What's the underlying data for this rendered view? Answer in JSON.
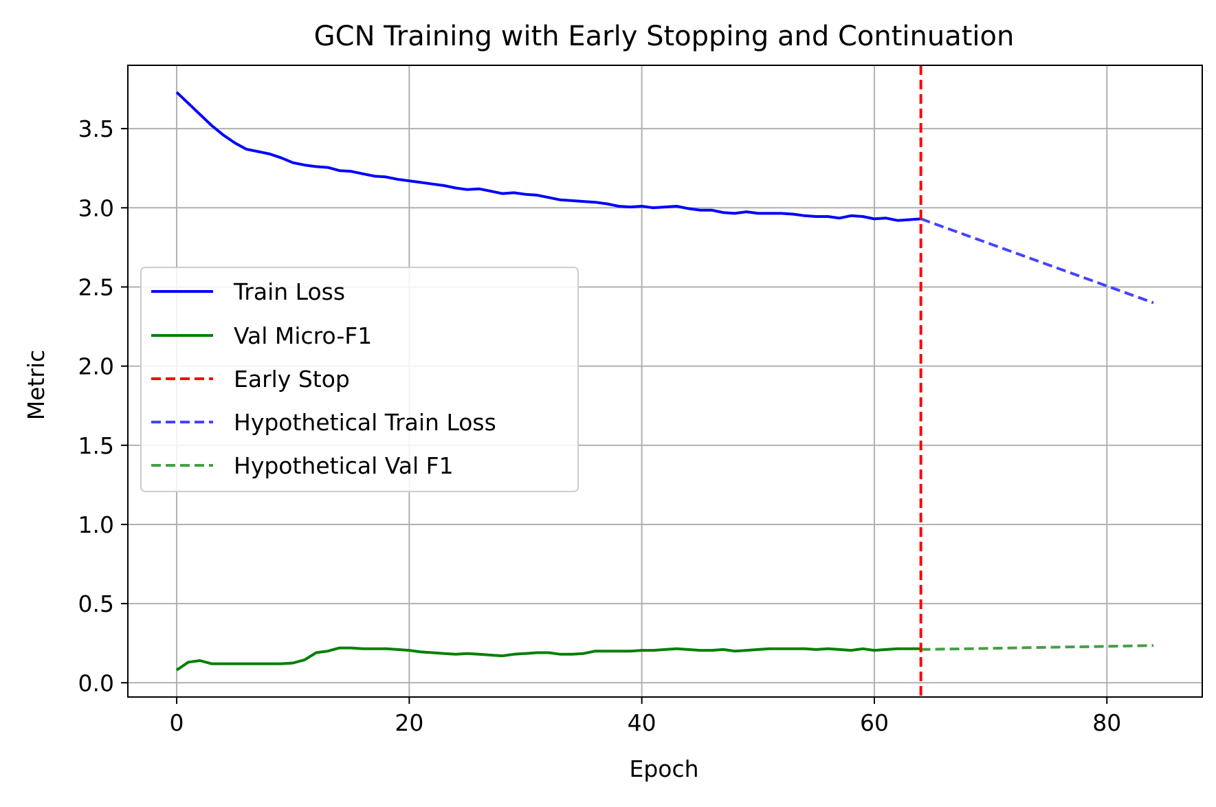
{
  "chart_data": {
    "type": "line",
    "title": "GCN Training with Early Stopping and Continuation",
    "xlabel": "Epoch",
    "ylabel": "Metric",
    "xlim": [
      -4.2,
      88.2
    ],
    "ylim": [
      -0.09,
      3.9
    ],
    "x_ticks": [
      0,
      20,
      40,
      60,
      80
    ],
    "x_tick_labels": [
      "0",
      "20",
      "40",
      "60",
      "80"
    ],
    "y_ticks": [
      0.0,
      0.5,
      1.0,
      1.5,
      2.0,
      2.5,
      3.0,
      3.5
    ],
    "y_tick_labels": [
      "0.0",
      "0.5",
      "1.0",
      "1.5",
      "2.0",
      "2.5",
      "3.0",
      "3.5"
    ],
    "grid": true,
    "legend_position": "center-left",
    "series": [
      {
        "name": "Train Loss",
        "color": "#0000ff",
        "style": "solid",
        "x": [
          0,
          1,
          2,
          3,
          4,
          5,
          6,
          7,
          8,
          9,
          10,
          11,
          12,
          13,
          14,
          15,
          16,
          17,
          18,
          19,
          20,
          21,
          22,
          23,
          24,
          25,
          26,
          27,
          28,
          29,
          30,
          31,
          32,
          33,
          34,
          35,
          36,
          37,
          38,
          39,
          40,
          41,
          42,
          43,
          44,
          45,
          46,
          47,
          48,
          49,
          50,
          51,
          52,
          53,
          54,
          55,
          56,
          57,
          58,
          59,
          60,
          61,
          62,
          63,
          64
        ],
        "values": [
          3.73,
          3.66,
          3.59,
          3.52,
          3.46,
          3.41,
          3.37,
          3.355,
          3.34,
          3.315,
          3.285,
          3.27,
          3.26,
          3.255,
          3.235,
          3.23,
          3.215,
          3.2,
          3.195,
          3.18,
          3.17,
          3.16,
          3.15,
          3.14,
          3.125,
          3.115,
          3.12,
          3.105,
          3.09,
          3.095,
          3.085,
          3.08,
          3.065,
          3.05,
          3.045,
          3.04,
          3.035,
          3.025,
          3.01,
          3.005,
          3.01,
          3.0,
          3.005,
          3.01,
          2.995,
          2.985,
          2.985,
          2.97,
          2.965,
          2.975,
          2.965,
          2.965,
          2.965,
          2.96,
          2.95,
          2.945,
          2.945,
          2.935,
          2.95,
          2.945,
          2.93,
          2.935,
          2.92,
          2.925,
          2.93
        ]
      },
      {
        "name": "Val Micro-F1",
        "color": "#008000",
        "style": "solid",
        "x": [
          0,
          1,
          2,
          3,
          4,
          5,
          6,
          7,
          8,
          9,
          10,
          11,
          12,
          13,
          14,
          15,
          16,
          17,
          18,
          19,
          20,
          21,
          22,
          23,
          24,
          25,
          26,
          27,
          28,
          29,
          30,
          31,
          32,
          33,
          34,
          35,
          36,
          37,
          38,
          39,
          40,
          41,
          42,
          43,
          44,
          45,
          46,
          47,
          48,
          49,
          50,
          51,
          52,
          53,
          54,
          55,
          56,
          57,
          58,
          59,
          60,
          61,
          62,
          63,
          64
        ],
        "values": [
          0.08,
          0.13,
          0.14,
          0.12,
          0.12,
          0.12,
          0.12,
          0.12,
          0.12,
          0.12,
          0.125,
          0.145,
          0.19,
          0.2,
          0.22,
          0.22,
          0.215,
          0.215,
          0.215,
          0.21,
          0.205,
          0.195,
          0.19,
          0.185,
          0.18,
          0.185,
          0.18,
          0.175,
          0.17,
          0.18,
          0.185,
          0.19,
          0.19,
          0.18,
          0.18,
          0.185,
          0.2,
          0.2,
          0.2,
          0.2,
          0.205,
          0.205,
          0.21,
          0.215,
          0.21,
          0.205,
          0.205,
          0.21,
          0.2,
          0.205,
          0.21,
          0.215,
          0.215,
          0.215,
          0.215,
          0.21,
          0.215,
          0.21,
          0.205,
          0.215,
          0.205,
          0.21,
          0.215,
          0.215,
          0.215
        ]
      },
      {
        "name": "Hypothetical Train Loss",
        "color": "#4444ff",
        "style": "dashed",
        "x": [
          64,
          84
        ],
        "values": [
          2.93,
          2.4
        ]
      },
      {
        "name": "Hypothetical Val F1",
        "color": "#44a044",
        "style": "dashed",
        "x": [
          64,
          84
        ],
        "values": [
          0.21,
          0.235
        ]
      }
    ],
    "annotations": [
      {
        "name": "Early Stop",
        "type": "vline",
        "x": 64,
        "color": "#ff0000",
        "style": "dashed"
      }
    ],
    "legend_entries": [
      "Train Loss",
      "Val Micro-F1",
      "Early Stop",
      "Hypothetical Train Loss",
      "Hypothetical Val F1"
    ]
  }
}
